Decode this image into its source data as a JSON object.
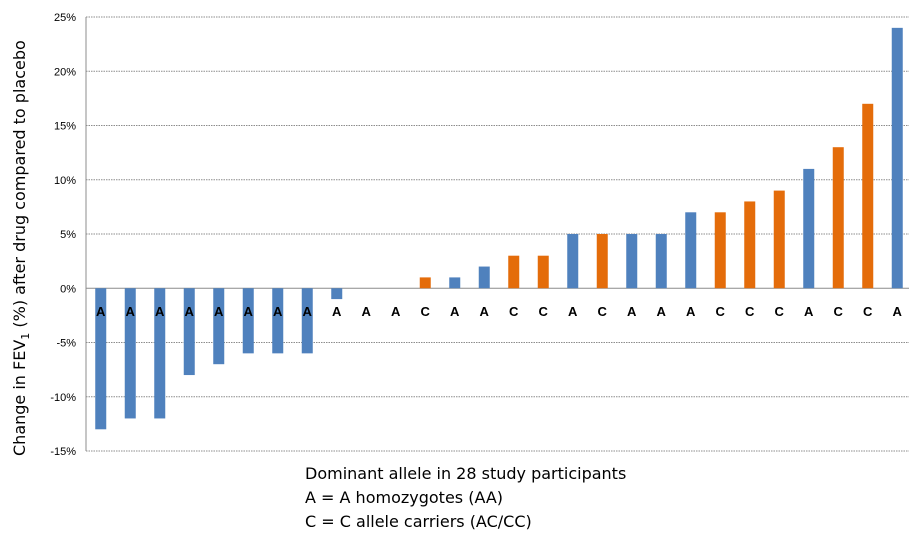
{
  "chart_data": {
    "type": "bar",
    "ylabel_parts": {
      "before": "Change in FEV",
      "sub": "1",
      "after": " (%) after drug compared to placebo"
    },
    "ylim": [
      -15,
      25
    ],
    "yticks": [
      "25%",
      "20%",
      "15%",
      "10%",
      "5%",
      "0%",
      "-5%",
      "-10%",
      "-15%"
    ],
    "ytick_values": [
      25,
      20,
      15,
      10,
      5,
      0,
      -5,
      -10,
      -15
    ],
    "grid": true,
    "categories": [
      "A",
      "A",
      "A",
      "A",
      "A",
      "A",
      "A",
      "A",
      "A",
      "A",
      "A",
      "C",
      "A",
      "A",
      "C",
      "C",
      "A",
      "C",
      "A",
      "A",
      "A",
      "C",
      "C",
      "C",
      "A",
      "C",
      "C",
      "A"
    ],
    "values": [
      -13,
      -12,
      -12,
      -8,
      -7,
      -6,
      -6,
      -6,
      -1,
      0,
      0,
      1,
      1,
      2,
      3,
      3,
      5,
      5,
      5,
      5,
      7,
      7,
      8,
      9,
      11,
      13,
      17,
      24
    ],
    "colors": {
      "A": "#4f81bd",
      "C": "#e46c0a"
    }
  },
  "caption": {
    "line1": "Dominant allele in 28  study participants",
    "line2": "A = A homozygotes (AA)",
    "line3": "C = C allele carriers (AC/CC)"
  }
}
